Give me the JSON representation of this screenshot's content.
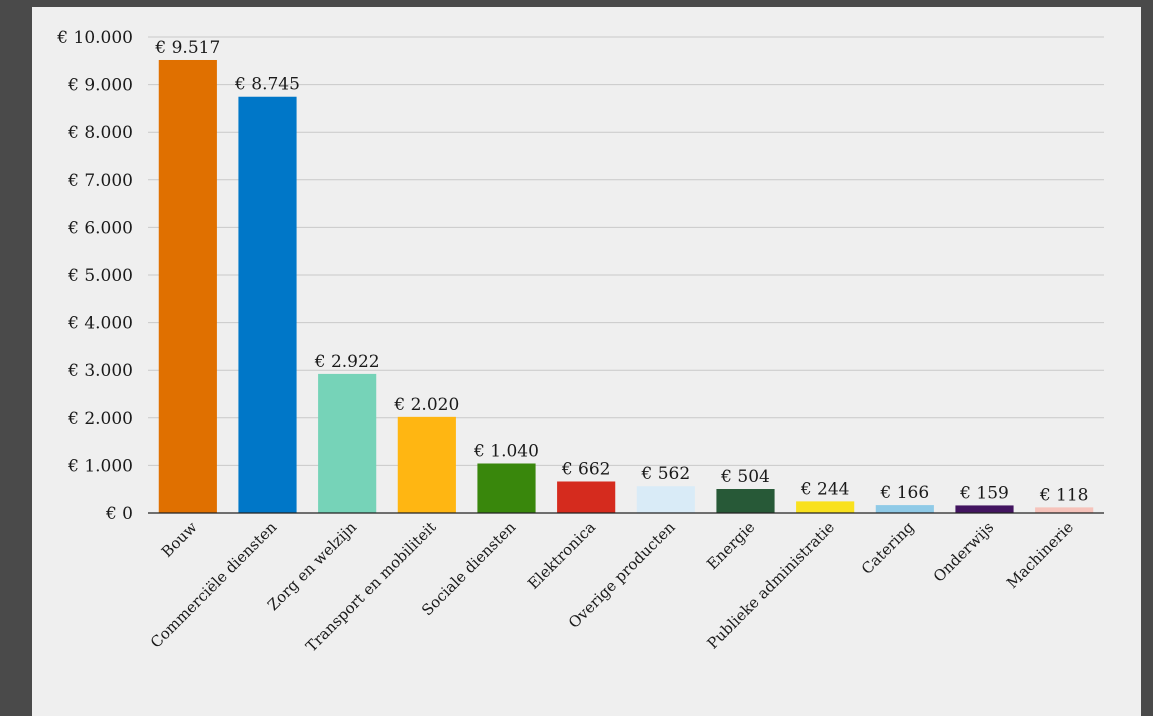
{
  "chart_data": {
    "type": "bar",
    "categories": [
      "Bouw",
      "Commerciële diensten",
      "Zorg en welzijn",
      "Transport en mobiliteit",
      "Sociale diensten",
      "Elektronica",
      "Overige producten",
      "Energie",
      "Publieke administratie",
      "Catering",
      "Onderwijs",
      "Machinerie"
    ],
    "values": [
      9517,
      8745,
      2922,
      2020,
      1040,
      662,
      562,
      504,
      244,
      166,
      159,
      118
    ],
    "value_labels": [
      "€ 9.517",
      "€ 8.745",
      "€ 2.922",
      "€ 2.020",
      "€ 1.040",
      "€ 662",
      "€ 562",
      "€ 504",
      "€ 244",
      "€ 166",
      "€ 159",
      "€ 118"
    ],
    "colors": [
      "#e07000",
      "#0077c8",
      "#76d3b8",
      "#ffb612",
      "#39870c",
      "#d52b1e",
      "#d9ebf7",
      "#275937",
      "#f9e11e",
      "#8fcae7",
      "#42145f",
      "#f6c3bb"
    ],
    "ylim": [
      0,
      10000
    ],
    "yticks": [
      0,
      1000,
      2000,
      3000,
      4000,
      5000,
      6000,
      7000,
      8000,
      9000,
      10000
    ],
    "ytick_labels": [
      "€ 0",
      "€ 1.000",
      "€ 2.000",
      "€ 3.000",
      "€ 4.000",
      "€ 5.000",
      "€ 6.000",
      "€ 7.000",
      "€ 8.000",
      "€ 9.000",
      "€ 10.000"
    ],
    "grid": true,
    "legend": "none"
  }
}
